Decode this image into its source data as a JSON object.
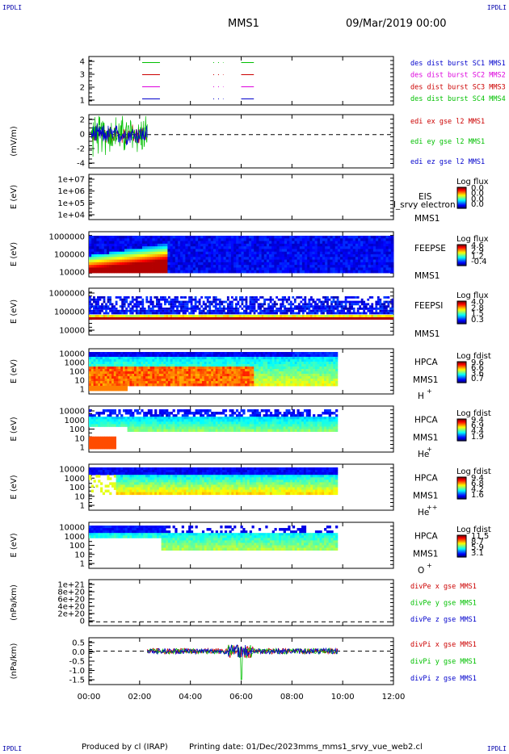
{
  "corners": {
    "tl": "IPDLI",
    "tr": "IPDLI",
    "bl": "IPDLI",
    "br": "IPDLI"
  },
  "header": {
    "spacecraft": "MMS1",
    "date": "09/Mar/2019 00:00"
  },
  "footer": {
    "produced": "Produced by cl (IRAP)",
    "printing": "Printing date: 01/Dec/2023",
    "file": "mms_mms1_srvy_vue_web2.cl"
  },
  "time_axis": {
    "ticks": [
      "00:00",
      "02:00",
      "04:00",
      "06:00",
      "08:00",
      "10:00",
      "12:00"
    ],
    "range_hours": [
      0,
      12
    ]
  },
  "colors": {
    "red": "#cc0000",
    "green": "#00c000",
    "blue": "#0000cc",
    "magenta": "#dd00dd"
  },
  "chart_data": [
    {
      "type": "line",
      "ylabel": "",
      "ylim": [
        0.5,
        4.5
      ],
      "yticks": [
        "4",
        "3",
        "2",
        "1"
      ],
      "legend": [
        {
          "label": "des dist burst SC1 MMS1",
          "color": "#0000cc"
        },
        {
          "label": "des dist burst SC2 MMS2",
          "color": "#dd00dd"
        },
        {
          "label": "des dist burst SC3 MMS3",
          "color": "#cc0000"
        },
        {
          "label": "des dist burst SC4 MMS4",
          "color": "#00c000"
        }
      ],
      "series": [
        {
          "name": "des dist burst SC1 MMS1",
          "y": 1,
          "intervals_hours": [
            [
              2.1,
              2.8
            ],
            [
              4.9,
              5.3
            ],
            [
              6.0,
              6.5
            ]
          ]
        },
        {
          "name": "des dist burst SC2 MMS2",
          "y": 2,
          "intervals_hours": [
            [
              2.1,
              2.8
            ],
            [
              4.9,
              5.3
            ],
            [
              6.0,
              6.5
            ]
          ]
        },
        {
          "name": "des dist burst SC3 MMS3",
          "y": 3,
          "intervals_hours": [
            [
              2.1,
              2.8
            ],
            [
              4.9,
              5.3
            ],
            [
              6.0,
              6.5
            ]
          ]
        },
        {
          "name": "des dist burst SC4 MMS4",
          "y": 4,
          "intervals_hours": [
            [
              2.1,
              2.8
            ],
            [
              4.9,
              5.3
            ],
            [
              6.0,
              6.5
            ]
          ]
        }
      ]
    },
    {
      "type": "line",
      "ylabel": "(mV/m)",
      "ylim": [
        -5,
        3
      ],
      "yticks": [
        "2",
        "0",
        "-2",
        "-4"
      ],
      "legend": [
        {
          "label": "edi ex gse l2 MMS1",
          "color": "#cc0000"
        },
        {
          "label": "edi ey gse l2 MMS1",
          "color": "#00c000"
        },
        {
          "label": "edi ez gse l2 MMS1",
          "color": "#0000cc"
        }
      ],
      "data_range_hours": [
        0.1,
        2.3
      ]
    },
    {
      "type": "heatmap",
      "ylabel": "E (eV)",
      "yticks": [
        "1e+07",
        "1e+06",
        "1e+05",
        "1e+04"
      ],
      "instrument": "EIS",
      "subtitle": "MMS1",
      "overlay_text": "l_srvy electron to",
      "colorbar_title": "Log flux",
      "colorbar_ticks": [
        "0.0",
        "0.0",
        "0.0",
        "0.0"
      ]
    },
    {
      "type": "heatmap",
      "ylabel": "E (eV)",
      "yticks": [
        "1000000",
        "100000",
        "10000"
      ],
      "instrument": "FEEPSE",
      "subtitle": "MMS1",
      "colorbar_title": "Log flux",
      "colorbar_ticks": [
        "4.6",
        "2.9",
        "1.2",
        "-0.4"
      ]
    },
    {
      "type": "heatmap",
      "ylabel": "E (eV)",
      "yticks": [
        "1000000",
        "100000",
        "10000"
      ],
      "instrument": "FEEPSI",
      "subtitle": "MMS1",
      "colorbar_title": "Log flux",
      "colorbar_ticks": [
        "4.0",
        "2.8",
        "1.5",
        "0.3"
      ]
    },
    {
      "type": "heatmap",
      "ylabel": "E (eV)",
      "yticks": [
        "10000",
        "1000",
        "100",
        "10",
        "1"
      ],
      "instrument": "HPCA",
      "subtitle": "MMS1",
      "species": "H",
      "charge": "+",
      "colorbar_title": "Log fdist",
      "colorbar_ticks": [
        "9.6",
        "6.6",
        "3.6",
        "0.7"
      ]
    },
    {
      "type": "heatmap",
      "ylabel": "E (eV)",
      "yticks": [
        "10000",
        "1000",
        "100",
        "10",
        "1"
      ],
      "instrument": "HPCA",
      "subtitle": "MMS1",
      "species": "He",
      "charge": "+",
      "colorbar_title": "Log fdist",
      "colorbar_ticks": [
        "9.4",
        "6.9",
        "4.4",
        "1.9"
      ]
    },
    {
      "type": "heatmap",
      "ylabel": "E (eV)",
      "yticks": [
        "10000",
        "1000",
        "100",
        "10",
        "1"
      ],
      "instrument": "HPCA",
      "subtitle": "MMS1",
      "species": "He",
      "charge": "++",
      "colorbar_title": "Log fdist",
      "colorbar_ticks": [
        "9.4",
        "6.8",
        "4.2",
        "1.6"
      ]
    },
    {
      "type": "heatmap",
      "ylabel": "E (eV)",
      "yticks": [
        "10000",
        "1000",
        "100",
        "10",
        "1"
      ],
      "instrument": "HPCA",
      "subtitle": "MMS1",
      "species": "O",
      "charge": "+",
      "colorbar_title": "Log fdist",
      "colorbar_ticks": [
        "11.5",
        "8.7",
        "5.9",
        "3.1"
      ]
    },
    {
      "type": "line",
      "ylabel": "(nPa/km)",
      "ylim": [
        -1e+20,
        1.1e+21
      ],
      "yticks": [
        "1e+21",
        "8e+20",
        "6e+20",
        "4e+20",
        "2e+20",
        "0"
      ],
      "legend": [
        {
          "label": "divPe x gse MMS1",
          "color": "#cc0000"
        },
        {
          "label": "divPe y gse MMS1",
          "color": "#00c000"
        },
        {
          "label": "divPe z gse MMS1",
          "color": "#0000cc"
        }
      ]
    },
    {
      "type": "line",
      "ylabel": "(nPa/km)",
      "ylim": [
        -2.0,
        0.8
      ],
      "yticks": [
        "0.5",
        "0.0",
        "-0.5",
        "-1.0",
        "-1.5"
      ],
      "legend": [
        {
          "label": "divPi x gse MMS1",
          "color": "#cc0000"
        },
        {
          "label": "divPi y gse MMS1",
          "color": "#00c000"
        },
        {
          "label": "divPi z gse MMS1",
          "color": "#0000cc"
        }
      ],
      "data_range_hours": [
        2.3,
        9.8
      ],
      "notable_dip": {
        "time_hours": 6.0,
        "value": -1.7
      }
    }
  ]
}
